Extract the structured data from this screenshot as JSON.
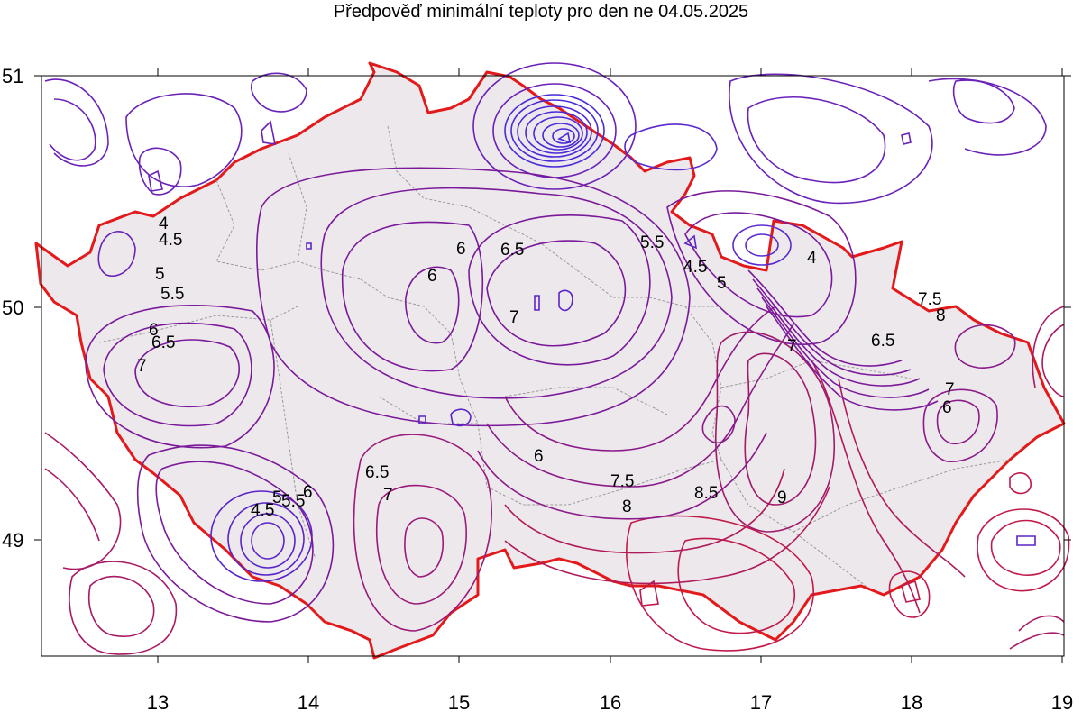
{
  "title": "Předpověď minimální teploty pro den ne 04.05.2025",
  "axes": {
    "x_ticks": [
      "13",
      "14",
      "15",
      "16",
      "17",
      "18",
      "19"
    ],
    "y_ticks": [
      "51",
      "50",
      "49"
    ],
    "xlim": [
      12.2,
      19.0
    ],
    "ylim": [
      48.5,
      51.0
    ]
  },
  "contour_labels": [
    "4",
    "4.5",
    "5",
    "5.5",
    "6",
    "6.5",
    "7",
    "7.5",
    "8",
    "8.5",
    "9"
  ],
  "colors": {
    "border": "#e31a1c",
    "fill": "#ede8ec",
    "districts": "#9a9a9a",
    "contour_cold": "#3d24e0",
    "contour_mid": "#7a1a9a",
    "contour_warm": "#d11a3a"
  }
}
